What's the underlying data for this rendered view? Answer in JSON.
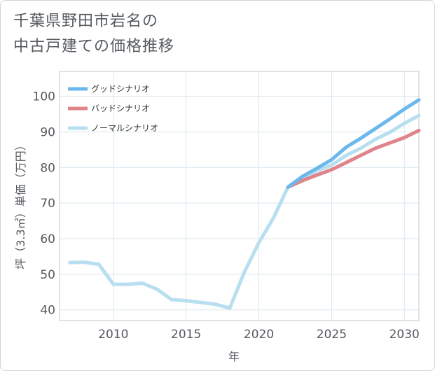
{
  "title_lines": [
    "千葉県野田市岩名の",
    "中古戸建ての価格推移"
  ],
  "chart_data": {
    "type": "line",
    "title": "千葉県野田市岩名の中古戸建ての価格推移",
    "xlabel": "年",
    "ylabel": "坪（3.3㎡）単価（万円）",
    "xlim": [
      2006.3,
      2031
    ],
    "ylim": [
      37,
      107
    ],
    "x_ticks": [
      2010,
      2015,
      2020,
      2025,
      2030
    ],
    "y_ticks": [
      40,
      50,
      60,
      70,
      80,
      90,
      100
    ],
    "grid": true,
    "legend_position": "top-left",
    "series": [
      {
        "name": "グッドシナリオ",
        "color": "#6cb8ec",
        "x": [
          2022,
          2023,
          2024,
          2025,
          2026,
          2027,
          2028,
          2029,
          2030,
          2031
        ],
        "values": [
          74.5,
          77.5,
          79.8,
          82.2,
          85.7,
          88.2,
          90.9,
          93.6,
          96.4,
          99.0
        ]
      },
      {
        "name": "バッドシナリオ",
        "color": "#e0848c",
        "x": [
          2022,
          2023,
          2024,
          2025,
          2026,
          2027,
          2028,
          2029,
          2030,
          2031
        ],
        "values": [
          74.5,
          76.3,
          77.9,
          79.4,
          81.4,
          83.4,
          85.4,
          86.9,
          88.4,
          90.4
        ]
      },
      {
        "name": "ノーマルシナリオ",
        "color": "#b8dff0",
        "x": [
          2007,
          2008,
          2009,
          2010,
          2011,
          2012,
          2013,
          2014,
          2015,
          2016,
          2017,
          2018,
          2019,
          2020,
          2021,
          2022,
          2023,
          2024,
          2025,
          2026,
          2027,
          2028,
          2029,
          2030,
          2031
        ],
        "values": [
          53.3,
          53.4,
          52.8,
          47.2,
          47.2,
          47.5,
          45.8,
          42.9,
          42.6,
          42.1,
          41.6,
          40.5,
          50.6,
          58.9,
          65.8,
          74.5,
          76.6,
          79.1,
          80.7,
          83.4,
          85.4,
          87.9,
          89.9,
          92.4,
          94.6
        ]
      }
    ]
  }
}
